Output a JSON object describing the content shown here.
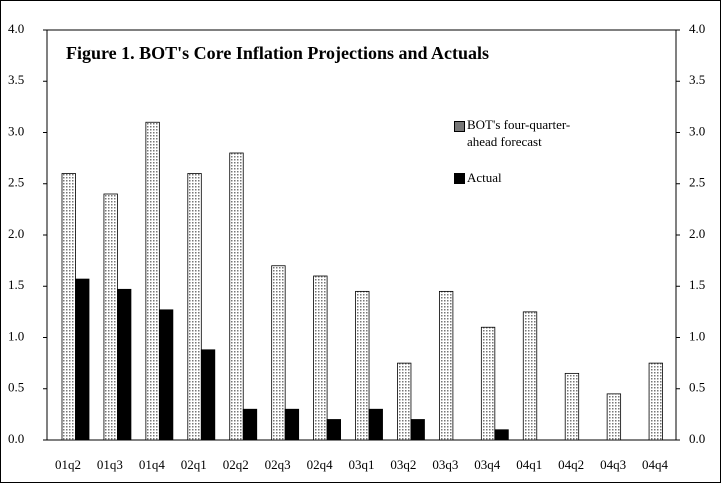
{
  "chart_data": {
    "type": "bar",
    "title": "Figure 1. BOT's Core Inflation Projections and Actuals",
    "categories": [
      "01q2",
      "01q3",
      "01q4",
      "02q1",
      "02q2",
      "02q3",
      "02q4",
      "03q1",
      "03q2",
      "03q3",
      "03q4",
      "04q1",
      "04q2",
      "04q3",
      "04q4"
    ],
    "series": [
      {
        "name": "BOT's four-quarter-ahead forecast",
        "color": "#777777",
        "values": [
          2.6,
          2.4,
          3.1,
          2.6,
          2.8,
          1.7,
          1.6,
          1.45,
          0.75,
          1.45,
          1.1,
          1.25,
          0.65,
          0.45,
          0.75
        ]
      },
      {
        "name": "Actual",
        "color": "#000000",
        "values": [
          1.57,
          1.47,
          1.27,
          0.88,
          0.3,
          0.3,
          0.2,
          0.3,
          0.2,
          null,
          0.1,
          null,
          null,
          null,
          null
        ]
      }
    ],
    "ylim": [
      0,
      4
    ],
    "yticks": [
      {
        "value": 0,
        "label": "0.0"
      },
      0.5,
      {
        "value": 1,
        "label": "1.0"
      },
      1.5,
      {
        "value": 2,
        "label": "2.0"
      },
      2.5,
      {
        "value": 3,
        "label": "3.0"
      },
      3.5,
      {
        "value": 4,
        "label": "4.0"
      }
    ],
    "y2lim": [
      0,
      4
    ],
    "y2ticks": [
      {
        "value": 0,
        "label": "0.0"
      },
      0.5,
      {
        "value": 1,
        "label": "1.0"
      },
      1.5,
      {
        "value": 2,
        "label": "2.0"
      },
      2.5,
      {
        "value": 3,
        "label": "3.0"
      },
      3.5,
      {
        "value": 4,
        "label": "4.0"
      }
    ],
    "grid": false
  }
}
